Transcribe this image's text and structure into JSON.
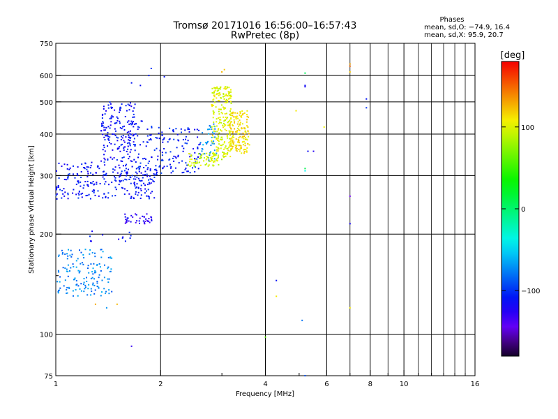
{
  "chart_data": {
    "type": "scatter",
    "title": "Tromsø 20171016 16:56:00–16:57:43",
    "subtitle": "RwPretec (8p)",
    "xlabel": "Frequency [MHz]",
    "ylabel": "Stationary phase Virtual Height [km]",
    "x_scale": "log",
    "y_scale": "log",
    "xlim": [
      1,
      16
    ],
    "ylim": [
      75,
      750
    ],
    "x_ticks": [
      1,
      2,
      4,
      6,
      8,
      10,
      16
    ],
    "x_minor_ticks": [
      3,
      5,
      7,
      9,
      11,
      12,
      13,
      14,
      15
    ],
    "y_ticks": [
      75,
      100,
      200,
      300,
      400,
      500,
      600,
      750
    ],
    "y_minor_ticks": [
      150
    ],
    "grid": true,
    "phases_box": {
      "heading": "Phases",
      "line_o": "mean, sd,O: −74.9, 16.4",
      "line_x": "mean, sd,X:  95.9, 20.7"
    },
    "colorbar": {
      "label": "[deg]",
      "range": [
        -180,
        180
      ],
      "ticks": [
        100,
        0,
        -100
      ],
      "colormap": "rainbow"
    },
    "clusters": [
      {
        "name": "",
        "xr": [
          1.0,
          1.95
        ],
        "yr": [
          255,
          330
        ],
        "phase": -110,
        "n": 260
      },
      {
        "name": "",
        "xr": [
          1.35,
          1.7
        ],
        "yr": [
          330,
          500
        ],
        "phase": -112,
        "n": 170
      },
      {
        "name": "",
        "xr": [
          1.6,
          1.95
        ],
        "yr": [
          280,
          440
        ],
        "phase": -108,
        "n": 60
      },
      {
        "name": "",
        "xr": [
          1.95,
          2.6
        ],
        "yr": [
          305,
          420
        ],
        "phase": -106,
        "n": 110
      },
      {
        "name": "",
        "xr": [
          2.6,
          2.9
        ],
        "yr": [
          330,
          430
        ],
        "phase": -70,
        "n": 45
      },
      {
        "name": "",
        "xr": [
          2.4,
          3.0
        ],
        "yr": [
          320,
          350
        ],
        "phase": 95,
        "n": 75
      },
      {
        "name": "",
        "xr": [
          2.8,
          3.2
        ],
        "yr": [
          340,
          560
        ],
        "phase": 100,
        "n": 230
      },
      {
        "name": "",
        "xr": [
          3.15,
          3.6
        ],
        "yr": [
          350,
          470
        ],
        "phase": 112,
        "n": 160
      },
      {
        "name": "",
        "xr": [
          1.55,
          1.9
        ],
        "yr": [
          215,
          230
        ],
        "phase": -128,
        "n": 40
      },
      {
        "name": "",
        "xr": [
          1.0,
          1.45
        ],
        "yr": [
          130,
          180
        ],
        "phase": -75,
        "n": 150
      },
      {
        "name": "",
        "xr": [
          1.25,
          1.65
        ],
        "yr": [
          190,
          205
        ],
        "phase": -112,
        "n": 12
      }
    ],
    "points": [
      {
        "x": 1.88,
        "y": 630,
        "phase": -100
      },
      {
        "x": 1.85,
        "y": 600,
        "phase": -105
      },
      {
        "x": 2.05,
        "y": 595,
        "phase": -110
      },
      {
        "x": 1.65,
        "y": 570,
        "phase": -108
      },
      {
        "x": 1.75,
        "y": 560,
        "phase": -112
      },
      {
        "x": 3.05,
        "y": 625,
        "phase": 120
      },
      {
        "x": 3.0,
        "y": 615,
        "phase": 125
      },
      {
        "x": 5.2,
        "y": 610,
        "phase": 5
      },
      {
        "x": 5.2,
        "y": 560,
        "phase": -115
      },
      {
        "x": 5.2,
        "y": 555,
        "phase": -120
      },
      {
        "x": 7.0,
        "y": 650,
        "phase": 130
      },
      {
        "x": 7.0,
        "y": 640,
        "phase": 150
      },
      {
        "x": 7.0,
        "y": 615,
        "phase": 120
      },
      {
        "x": 7.8,
        "y": 510,
        "phase": -110
      },
      {
        "x": 7.8,
        "y": 480,
        "phase": -100
      },
      {
        "x": 4.9,
        "y": 470,
        "phase": 110
      },
      {
        "x": 5.9,
        "y": 420,
        "phase": 105
      },
      {
        "x": 5.3,
        "y": 355,
        "phase": -115
      },
      {
        "x": 5.5,
        "y": 355,
        "phase": -125
      },
      {
        "x": 5.2,
        "y": 315,
        "phase": 10
      },
      {
        "x": 5.2,
        "y": 310,
        "phase": -40
      },
      {
        "x": 7.0,
        "y": 260,
        "phase": -150
      },
      {
        "x": 7.0,
        "y": 215,
        "phase": -120
      },
      {
        "x": 4.3,
        "y": 145,
        "phase": -110
      },
      {
        "x": 4.3,
        "y": 130,
        "phase": 110
      },
      {
        "x": 5.1,
        "y": 110,
        "phase": -80
      },
      {
        "x": 4.0,
        "y": 98,
        "phase": 60
      },
      {
        "x": 7.0,
        "y": 120,
        "phase": 110
      },
      {
        "x": 1.3,
        "y": 123,
        "phase": 130
      },
      {
        "x": 1.5,
        "y": 123,
        "phase": 125
      },
      {
        "x": 1.4,
        "y": 120,
        "phase": -70
      },
      {
        "x": 1.65,
        "y": 92,
        "phase": -130
      },
      {
        "x": 5.2,
        "y": 75,
        "phase": -90
      }
    ]
  }
}
